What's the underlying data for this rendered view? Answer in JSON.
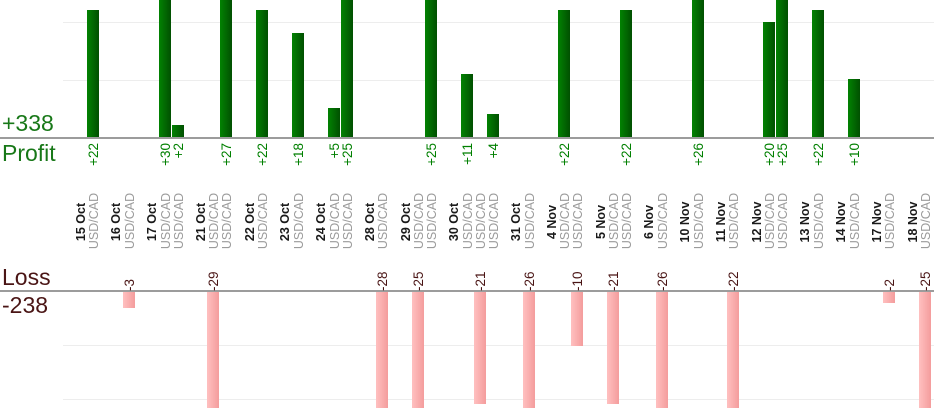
{
  "chart_data": {
    "type": "bar",
    "description": "Trading profit and loss per trade, grouped by date",
    "profit_section": {
      "title": "Profit",
      "total": "+338"
    },
    "loss_section": {
      "title": "Loss",
      "total": "-238"
    },
    "trades": [
      {
        "date": "15 Oct",
        "instrument": "USD/CAD",
        "value": 22
      },
      {
        "date": "16 Oct",
        "instrument": "USD/CAD",
        "value": -3
      },
      {
        "date": "17 Oct",
        "instrument": "USD/CAD",
        "value": 30
      },
      {
        "date": "17 Oct",
        "instrument": "USD/CAD",
        "value": 2
      },
      {
        "date": "21 Oct",
        "instrument": "USD/CAD",
        "value": -29
      },
      {
        "date": "21 Oct",
        "instrument": "USD/CAD",
        "value": 27
      },
      {
        "date": "22 Oct",
        "instrument": "USD/CAD",
        "value": 22
      },
      {
        "date": "23 Oct",
        "instrument": "USD/CAD",
        "value": 18
      },
      {
        "date": "24 Oct",
        "instrument": "USD/CAD",
        "value": 5
      },
      {
        "date": "24 Oct",
        "instrument": "USD/CAD",
        "value": 25
      },
      {
        "date": "28 Oct",
        "instrument": "USD/CAD",
        "value": -28
      },
      {
        "date": "29 Oct",
        "instrument": "USD/CAD",
        "value": -25
      },
      {
        "date": "29 Oct",
        "instrument": "USD/CAD",
        "value": 25
      },
      {
        "date": "30 Oct",
        "instrument": "USD/CAD",
        "value": 11
      },
      {
        "date": "30 Oct",
        "instrument": "USD/CAD",
        "value": -21
      },
      {
        "date": "30 Oct",
        "instrument": "USD/CAD",
        "value": 4
      },
      {
        "date": "31 Oct",
        "instrument": "USD/CAD",
        "value": -26
      },
      {
        "date": "4 Nov",
        "instrument": "USD/CAD",
        "value": 22
      },
      {
        "date": "4 Nov",
        "instrument": "USD/CAD",
        "value": -10
      },
      {
        "date": "5 Nov",
        "instrument": "USD/CAD",
        "value": -21
      },
      {
        "date": "5 Nov",
        "instrument": "USD/CAD",
        "value": 22
      },
      {
        "date": "6 Nov",
        "instrument": "USD/CAD",
        "value": -26
      },
      {
        "date": "10 Nov",
        "instrument": "USD/CAD",
        "value": 26
      },
      {
        "date": "11 Nov",
        "instrument": "USD/CAD",
        "value": -22
      },
      {
        "date": "12 Nov",
        "instrument": "USD/CAD",
        "value": 20
      },
      {
        "date": "12 Nov",
        "instrument": "USD/CAD",
        "value": 25
      },
      {
        "date": "13 Nov",
        "instrument": "USD/CAD",
        "value": 22
      },
      {
        "date": "14 Nov",
        "instrument": "USD/CAD",
        "value": 10
      },
      {
        "date": "17 Nov",
        "instrument": "USD/CAD",
        "value": -2
      },
      {
        "date": "18 Nov",
        "instrument": "USD/CAD",
        "value": -25
      }
    ],
    "layout_hints": {
      "profit_gridline_units": [
        10,
        20
      ],
      "loss_gridline_units": [
        -10,
        -20
      ],
      "grid": "on",
      "profit_axis_clipped_above": 24,
      "loss_axis_clipped_below": -22
    },
    "colors": {
      "profit_bar_light": "#028202",
      "profit_bar_dark": "#015001",
      "loss_bar_light": "#ffc0c0",
      "loss_bar_dark": "#f49c9c",
      "profit_text": "#008000",
      "profit_summary_text": "#187818",
      "loss_text": "#4a1515",
      "date_text": "#1a1a1a",
      "instrument_text": "#9b9b9b",
      "axis": "#9c9c9c",
      "gridline": "#ededed"
    }
  }
}
